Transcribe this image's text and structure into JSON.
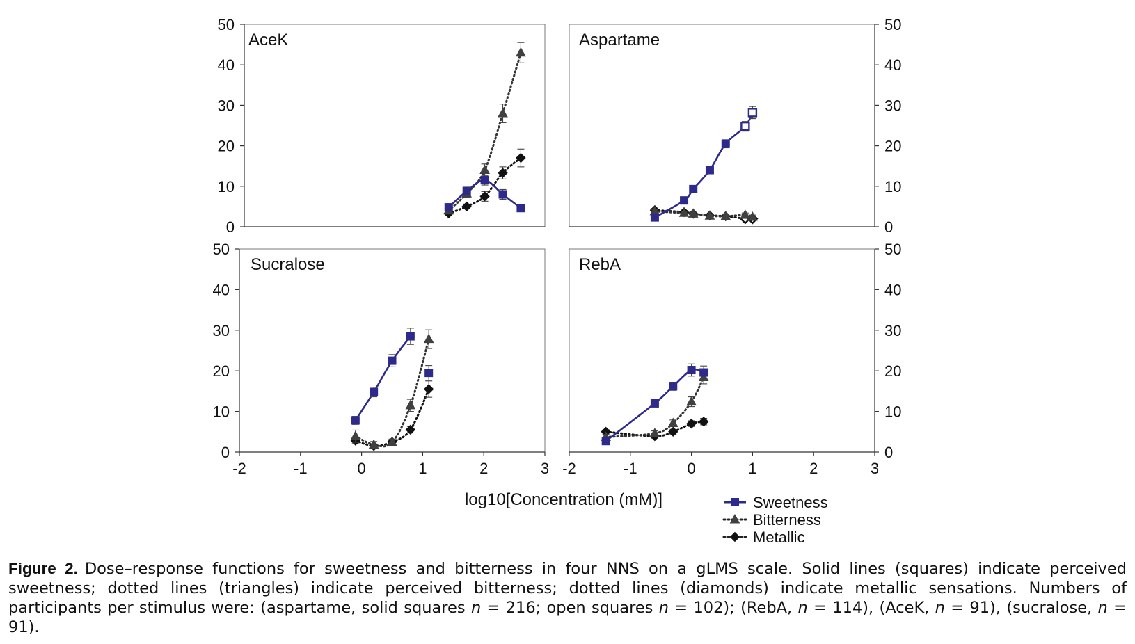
{
  "figure": {
    "xlabel": "log10[Concentration (mM)]",
    "legend": [
      {
        "name": "Sweetness",
        "marker": "square",
        "color": "#2e2a8c",
        "line": "solid"
      },
      {
        "name": "Bitterness",
        "marker": "triangle",
        "color": "#404040",
        "line": "dotted"
      },
      {
        "name": "Metallic",
        "marker": "diamond",
        "color": "#111111",
        "line": "dotted"
      }
    ],
    "caption": {
      "label": "Figure 2.",
      "text_1": "Dose–response functions for sweetness and bitterness in four NNS on a gLMS scale. Solid lines (squares) indicate perceived sweetness; dotted lines (triangles) indicate perceived bitterness; dotted lines (diamonds) indicate metallic sensations. Numbers of participants per stimulus were: (aspartame, solid squares ",
      "n1": "n",
      "text_2": " = 216; open squares ",
      "n2": "n",
      "text_3": " = 102); (RebA, ",
      "n3": "n",
      "text_4": " = 114), (AceK, ",
      "n4": "n",
      "text_5": " = 91), (sucralose, ",
      "n5": "n",
      "text_6": " = 91)."
    }
  },
  "chart_data": [
    {
      "type": "line",
      "title": "AceK",
      "xlim": [
        -2,
        3
      ],
      "ylim": [
        0,
        50
      ],
      "xticks": [
        -2,
        -1,
        0,
        1,
        2,
        3
      ],
      "yticks": [
        0,
        10,
        20,
        30,
        40,
        50
      ],
      "series": [
        {
          "name": "Sweetness",
          "x": [
            1.4,
            1.7,
            2.0,
            2.3,
            2.6
          ],
          "y": [
            4.8,
            8.8,
            11.5,
            8.0,
            4.6
          ],
          "err": [
            0.8,
            1.0,
            1.2,
            1.2,
            0.6
          ]
        },
        {
          "name": "Bitterness",
          "x": [
            1.4,
            1.7,
            2.0,
            2.3,
            2.6
          ],
          "y": [
            4.0,
            8.2,
            14.0,
            28.0,
            43.0
          ],
          "err": [
            0.8,
            1.0,
            1.5,
            2.3,
            2.5
          ]
        },
        {
          "name": "Metallic",
          "x": [
            1.4,
            1.7,
            2.0,
            2.3,
            2.6
          ],
          "y": [
            3.3,
            5.0,
            7.5,
            13.3,
            17.0
          ],
          "err": [
            0.5,
            0.6,
            1.2,
            1.5,
            2.2
          ]
        }
      ]
    },
    {
      "type": "line",
      "title": "Aspartame",
      "xlim": [
        -2,
        3
      ],
      "ylim": [
        0,
        50
      ],
      "xticks": [
        -2,
        -1,
        0,
        1,
        2,
        3
      ],
      "yticks": [
        0,
        10,
        20,
        30,
        40,
        50
      ],
      "series": [
        {
          "name": "Sweetness",
          "x": [
            -0.6,
            -0.12,
            0.03,
            0.3,
            0.56,
            0.88,
            1.0
          ],
          "y": [
            2.3,
            6.5,
            9.3,
            14.0,
            20.5,
            24.8,
            28.2
          ],
          "err": [
            0.4,
            0.6,
            0.8,
            0.9,
            1.0,
            1.2,
            1.5
          ],
          "open": [
            false,
            false,
            false,
            false,
            false,
            true,
            true
          ]
        },
        {
          "name": "Bitterness",
          "x": [
            -0.6,
            -0.12,
            0.03,
            0.3,
            0.56,
            0.88,
            1.0
          ],
          "y": [
            3.8,
            3.4,
            3.2,
            2.7,
            2.6,
            2.9,
            2.4
          ],
          "err": [
            0.4,
            0.4,
            0.4,
            0.4,
            0.4,
            0.5,
            0.5
          ]
        },
        {
          "name": "Metallic",
          "x": [
            -0.6,
            -0.12,
            0.03,
            0.3,
            0.56,
            0.88,
            1.0
          ],
          "y": [
            4.1,
            3.6,
            3.2,
            2.8,
            2.6,
            2.0,
            2.0
          ],
          "err": [
            0.4,
            0.4,
            0.4,
            0.4,
            0.4,
            0.4,
            0.4
          ],
          "open": [
            false,
            false,
            false,
            false,
            false,
            true,
            true
          ]
        }
      ]
    },
    {
      "type": "line",
      "title": "Sucralose",
      "xlim": [
        -2,
        3
      ],
      "ylim": [
        0,
        50
      ],
      "xticks": [
        -2,
        -1,
        0,
        1,
        2,
        3
      ],
      "yticks": [
        0,
        10,
        20,
        30,
        40,
        50
      ],
      "series": [
        {
          "name": "Sweetness",
          "x": [
            -0.1,
            0.2,
            0.5,
            0.8,
            1.1
          ],
          "y": [
            7.8,
            14.8,
            22.5,
            28.5,
            19.5
          ],
          "err": [
            1.0,
            1.2,
            1.5,
            2.0,
            1.8
          ]
        },
        {
          "name": "Bitterness",
          "x": [
            -0.1,
            0.2,
            0.5,
            0.8,
            1.1
          ],
          "y": [
            3.9,
            1.8,
            2.4,
            11.5,
            27.8
          ],
          "err": [
            1.5,
            0.8,
            0.8,
            1.5,
            2.3
          ]
        },
        {
          "name": "Metallic",
          "x": [
            -0.1,
            0.2,
            0.5,
            0.8,
            1.1
          ],
          "y": [
            2.8,
            1.5,
            2.5,
            5.5,
            15.5
          ],
          "err": [
            0.6,
            0.5,
            0.6,
            0.8,
            2.0
          ]
        }
      ],
      "sweet_fit_points": 4
    },
    {
      "type": "line",
      "title": "RebA",
      "xlim": [
        -2,
        3
      ],
      "ylim": [
        0,
        50
      ],
      "xticks": [
        -2,
        -1,
        0,
        1,
        2,
        3
      ],
      "yticks": [
        0,
        10,
        20,
        30,
        40,
        50
      ],
      "series": [
        {
          "name": "Sweetness",
          "x": [
            -1.4,
            -0.6,
            -0.3,
            0.0,
            0.2
          ],
          "y": [
            2.7,
            12.0,
            16.2,
            20.2,
            19.6
          ],
          "err": [
            0.5,
            0.8,
            1.0,
            1.5,
            1.6
          ]
        },
        {
          "name": "Bitterness",
          "x": [
            -1.4,
            -0.6,
            -0.3,
            0.0,
            0.2
          ],
          "y": [
            3.7,
            4.6,
            7.1,
            12.4,
            18.4
          ],
          "err": [
            0.6,
            0.6,
            0.8,
            1.2,
            1.6
          ]
        },
        {
          "name": "Metallic",
          "x": [
            -1.4,
            -0.6,
            -0.3,
            0.0,
            0.2
          ],
          "y": [
            5.0,
            3.9,
            5.0,
            7.0,
            7.5
          ],
          "err": [
            0.5,
            0.5,
            0.6,
            0.7,
            0.8
          ]
        }
      ]
    }
  ]
}
